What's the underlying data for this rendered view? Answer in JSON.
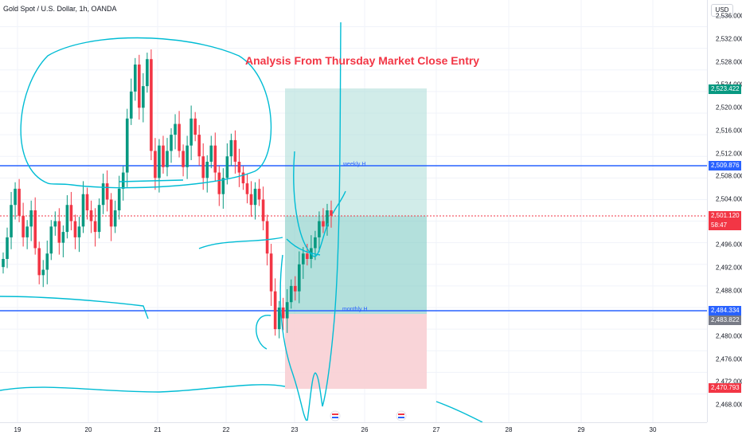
{
  "header": {
    "symbol": "Gold Spot / U.S. Dollar, 1h, OANDA",
    "currency": "USD"
  },
  "annotation_title": "Analysis From Thursday Market Close Entry",
  "horizontal_lines": {
    "weekly": "weekly H",
    "monthly": "monthly H"
  },
  "price_axis": {
    "ticks": [
      "2,532.000",
      "2,528.000",
      "2,524.000",
      "2,520.000",
      "2,516.000",
      "2,512.000",
      "2,508.000",
      "2,504.000",
      "2,496.000",
      "2,492.000",
      "2,488.000",
      "2,480.000",
      "2,476.000",
      "2,472.000",
      "2,468.000"
    ],
    "top_partial": "2,536.000",
    "badges": {
      "target": "2,523.422",
      "weekly_h": "2,509.876",
      "current": "2,501.120",
      "countdown": "58:47",
      "monthly_h": "2,484.334",
      "entry": "2,483.822",
      "stop": "2,470.793"
    }
  },
  "time_axis": {
    "ticks": [
      "19",
      "20",
      "21",
      "22",
      "23",
      "26",
      "27",
      "28",
      "29",
      "30"
    ]
  },
  "colors": {
    "up": "#089981",
    "down": "#f23645",
    "line": "#2962ff",
    "drawing": "#00bcd4",
    "target_zone": "#b2dfdb",
    "stop_zone": "#f8cdd1"
  },
  "chart_data": {
    "type": "candlestick",
    "instrument": "Gold Spot / U.S. Dollar",
    "timeframe": "1h",
    "ylim": [
      2466,
      2538
    ],
    "horizontal_levels": [
      {
        "name": "weekly H",
        "value": 2509.876
      },
      {
        "name": "monthly H",
        "value": 2484.334
      }
    ],
    "position": {
      "entry": 2483.822,
      "target": 2523.422,
      "stop": 2470.793
    },
    "last_price": 2501.12,
    "approx_closes": [
      2493,
      2497,
      2503,
      2506,
      2501,
      2497,
      2499,
      2502,
      2495,
      2490,
      2491,
      2494,
      2499,
      2500,
      2496,
      2498,
      2503,
      2500,
      2497,
      2499,
      2505,
      2502,
      2500,
      2498,
      2503,
      2507,
      2504,
      2499,
      2502,
      2506,
      2509,
      2519,
      2524,
      2529,
      2521,
      2525,
      2530,
      2513,
      2508,
      2514,
      2510,
      2513,
      2516,
      2518,
      2513,
      2510,
      2514,
      2519,
      2516,
      2512,
      2508,
      2511,
      2514,
      2509,
      2505,
      2508,
      2512,
      2515,
      2511,
      2509,
      2507,
      2505,
      2503,
      2506,
      2504,
      2500,
      2494,
      2487,
      2480,
      2484,
      2482,
      2485,
      2488,
      2487,
      2492,
      2494,
      2493,
      2495,
      2497,
      2500,
      2499,
      2502,
      2501
    ]
  }
}
